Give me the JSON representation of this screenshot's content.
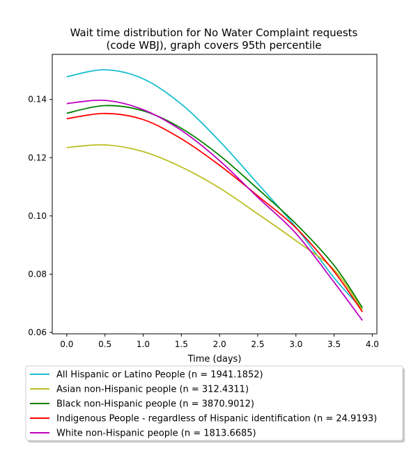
{
  "chart_data": {
    "type": "line",
    "title": [
      "Wait time distribution  for No Water Complaint  requests",
      "(code WBJ), graph covers 95th percentile"
    ],
    "xlabel": "Time (days)",
    "ylabel": "",
    "xlim": [
      -0.19,
      4.06
    ],
    "ylim": [
      0.0595,
      0.1555
    ],
    "xticks": [
      0.0,
      0.5,
      1.0,
      1.5,
      2.0,
      2.5,
      3.0,
      3.5,
      4.0
    ],
    "xtick_labels": [
      "0.0",
      "0.5",
      "1.0",
      "1.5",
      "2.0",
      "2.5",
      "3.0",
      "3.5",
      "4.0"
    ],
    "yticks": [
      0.06,
      0.08,
      0.1,
      0.12,
      0.14
    ],
    "ytick_labels": [
      "0.06",
      "0.08",
      "0.10",
      "0.12",
      "0.14"
    ],
    "grid": false,
    "legend_position": "below",
    "x": [
      0.0,
      0.5,
      1.0,
      1.5,
      2.0,
      2.5,
      3.0,
      3.5,
      3.87
    ],
    "series": [
      {
        "name": "All Hispanic or Latino People (n = 1941.1852)",
        "color": "#17becf",
        "values": [
          0.1478,
          0.1502,
          0.1471,
          0.1384,
          0.1257,
          0.1111,
          0.0961,
          0.0787,
          0.068
        ]
      },
      {
        "name": "Asian non-Hispanic people (n = 312.4311)",
        "color": "#bcbd22",
        "values": [
          0.1235,
          0.1244,
          0.1221,
          0.1168,
          0.1096,
          0.1007,
          0.0915,
          0.0815,
          0.0678
        ]
      },
      {
        "name": "Black non-Hispanic people (n = 3870.9012)",
        "color": "#008000",
        "values": [
          0.1353,
          0.1379,
          0.1361,
          0.1301,
          0.1208,
          0.1093,
          0.0973,
          0.083,
          0.0685
        ]
      },
      {
        "name": "Indigenous People - regardless of Hispanic identification (n = 24.9193)",
        "color": "#ff0000",
        "values": [
          0.1334,
          0.1352,
          0.1331,
          0.1265,
          0.1174,
          0.1069,
          0.0959,
          0.0809,
          0.067
        ]
      },
      {
        "name": "White non-Hispanic people (n = 1813.6685)",
        "color": "#bf00bf",
        "values": [
          0.1386,
          0.1397,
          0.1365,
          0.1294,
          0.119,
          0.1064,
          0.094,
          0.0772,
          0.0641
        ]
      }
    ]
  }
}
